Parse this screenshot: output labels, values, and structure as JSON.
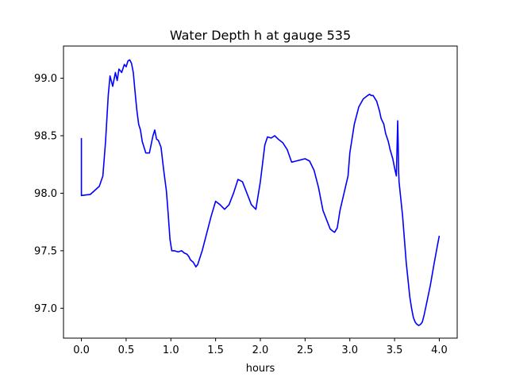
{
  "chart_data": {
    "type": "line",
    "title": "Water Depth h at gauge 535",
    "xlabel": "hours",
    "ylabel": "",
    "xlim": [
      -0.2,
      4.2
    ],
    "ylim": [
      96.74,
      99.28
    ],
    "xticks": [
      0.0,
      0.5,
      1.0,
      1.5,
      2.0,
      2.5,
      3.0,
      3.5,
      4.0
    ],
    "xtick_labels": [
      "0.0",
      "0.5",
      "1.0",
      "1.5",
      "2.0",
      "2.5",
      "3.0",
      "3.5",
      "4.0"
    ],
    "yticks": [
      97.0,
      97.5,
      98.0,
      98.5,
      99.0
    ],
    "ytick_labels": [
      "97.0",
      "97.5",
      "98.0",
      "98.5",
      "99.0"
    ],
    "grid": false,
    "series": [
      {
        "color": "#0000ff",
        "x": [
          0.0,
          0.0,
          0.0,
          0.1,
          0.2,
          0.24,
          0.27,
          0.3,
          0.32,
          0.35,
          0.36,
          0.38,
          0.4,
          0.42,
          0.45,
          0.48,
          0.5,
          0.52,
          0.54,
          0.56,
          0.58,
          0.6,
          0.62,
          0.64,
          0.66,
          0.68,
          0.72,
          0.76,
          0.8,
          0.82,
          0.84,
          0.86,
          0.89,
          0.92,
          0.95,
          0.97,
          0.99,
          1.01,
          1.04,
          1.08,
          1.12,
          1.15,
          1.18,
          1.2,
          1.22,
          1.25,
          1.28,
          1.3,
          1.35,
          1.4,
          1.45,
          1.5,
          1.55,
          1.6,
          1.65,
          1.7,
          1.75,
          1.8,
          1.85,
          1.9,
          1.95,
          2.0,
          2.05,
          2.08,
          2.12,
          2.16,
          2.2,
          2.25,
          2.3,
          2.35,
          2.4,
          2.45,
          2.5,
          2.55,
          2.6,
          2.65,
          2.7,
          2.75,
          2.78,
          2.81,
          2.83,
          2.86,
          2.89,
          2.92,
          2.95,
          2.98,
          3.0,
          3.05,
          3.1,
          3.15,
          3.2,
          3.22,
          3.24,
          3.26,
          3.3,
          3.33,
          3.35,
          3.38,
          3.4,
          3.43,
          3.45,
          3.48,
          3.5,
          3.52,
          3.535,
          3.54,
          3.545,
          3.55,
          3.57,
          3.59,
          3.61,
          3.63,
          3.65,
          3.67,
          3.69,
          3.71,
          3.73,
          3.75,
          3.77,
          3.79,
          3.81,
          3.83,
          3.86,
          3.9,
          3.94,
          3.98,
          4.0
        ],
        "y": [
          98.48,
          98.48,
          97.98,
          97.99,
          98.06,
          98.15,
          98.45,
          98.85,
          99.02,
          98.93,
          98.97,
          99.05,
          98.98,
          99.08,
          99.05,
          99.12,
          99.1,
          99.15,
          99.16,
          99.13,
          99.05,
          98.88,
          98.72,
          98.6,
          98.55,
          98.45,
          98.35,
          98.35,
          98.5,
          98.55,
          98.47,
          98.46,
          98.4,
          98.2,
          98.02,
          97.82,
          97.6,
          97.5,
          97.5,
          97.49,
          97.5,
          97.48,
          97.47,
          97.45,
          97.42,
          97.4,
          97.36,
          97.38,
          97.5,
          97.65,
          97.8,
          97.93,
          97.9,
          97.86,
          97.9,
          98.0,
          98.12,
          98.1,
          98.0,
          97.9,
          97.86,
          98.1,
          98.42,
          98.49,
          98.48,
          98.5,
          98.47,
          98.44,
          98.38,
          98.27,
          98.28,
          98.29,
          98.3,
          98.28,
          98.2,
          98.05,
          97.85,
          97.75,
          97.69,
          97.67,
          97.66,
          97.7,
          97.85,
          97.95,
          98.05,
          98.15,
          98.35,
          98.6,
          98.75,
          98.82,
          98.85,
          98.86,
          98.85,
          98.85,
          98.8,
          98.72,
          98.65,
          98.6,
          98.52,
          98.45,
          98.38,
          98.3,
          98.22,
          98.15,
          98.63,
          98.45,
          98.2,
          98.1,
          97.95,
          97.8,
          97.6,
          97.4,
          97.25,
          97.1,
          97.0,
          96.92,
          96.88,
          96.86,
          96.85,
          96.86,
          96.88,
          96.94,
          97.05,
          97.2,
          97.38,
          97.55,
          97.63
        ]
      }
    ]
  }
}
